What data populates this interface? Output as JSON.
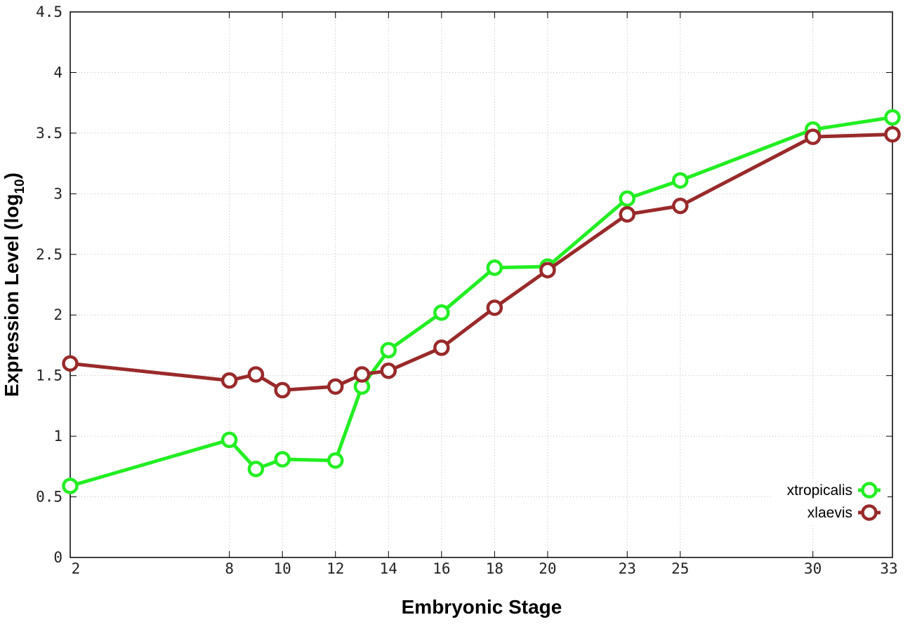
{
  "chart_data": {
    "type": "line",
    "title": "",
    "xlabel": "Embryonic Stage",
    "ylabel": "Expression Level (log",
    "ylabel_subscript": "10",
    "ylabel_close": ")",
    "x": [
      2,
      8,
      9,
      10,
      12,
      13,
      14,
      16,
      18,
      20,
      23,
      25,
      30,
      33
    ],
    "x_ticks": [
      2,
      8,
      10,
      12,
      14,
      16,
      18,
      20,
      23,
      25,
      30,
      33
    ],
    "y_ticks": [
      0,
      0.5,
      1,
      1.5,
      2,
      2.5,
      3,
      3.5,
      4,
      4.5
    ],
    "xlim": [
      2,
      33
    ],
    "ylim": [
      0,
      4.5
    ],
    "grid": true,
    "legend_position": "bottom-right",
    "series": [
      {
        "name": "xtropicalis",
        "color": "#22ee22",
        "values": [
          0.59,
          0.97,
          0.73,
          0.81,
          0.8,
          1.41,
          1.71,
          2.02,
          2.39,
          2.4,
          2.96,
          3.11,
          3.53,
          3.63
        ]
      },
      {
        "name": "xlaevis",
        "color": "#992a2a",
        "values": [
          1.6,
          1.46,
          1.51,
          1.38,
          1.41,
          1.51,
          1.54,
          1.73,
          2.06,
          2.37,
          2.83,
          2.9,
          3.47,
          3.49
        ]
      }
    ]
  }
}
